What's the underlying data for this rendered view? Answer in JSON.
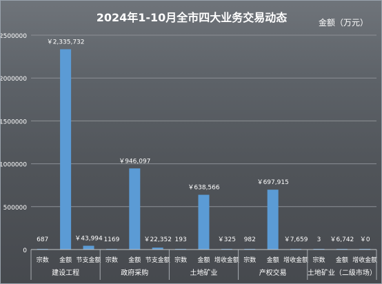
{
  "chart_data": {
    "type": "bar",
    "title": "2024年1-10月全市四大业务交易动态",
    "unit_label": "金额（万元）",
    "ylim": [
      0,
      2500000
    ],
    "y_ticks": [
      "0",
      "500000",
      "1000000",
      "1500000",
      "2000000",
      "2500000"
    ],
    "grid": true,
    "bar_color": "#5b9bd5",
    "groups": [
      {
        "name": "建设工程",
        "items": [
          {
            "label": "宗数",
            "value": 687,
            "text": "687"
          },
          {
            "label": "金额",
            "value": 2335732,
            "text": "￥2,335,732"
          },
          {
            "label": "节支金额",
            "value": 43994,
            "text": "￥43,994"
          }
        ]
      },
      {
        "name": "政府采购",
        "items": [
          {
            "label": "宗数",
            "value": 1169,
            "text": "1169"
          },
          {
            "label": "金额",
            "value": 946097,
            "text": "￥946,097"
          },
          {
            "label": "节支金额",
            "value": 22352,
            "text": "￥22,352"
          }
        ]
      },
      {
        "name": "土地矿业",
        "items": [
          {
            "label": "宗数",
            "value": 193,
            "text": "193"
          },
          {
            "label": "金额",
            "value": 638566,
            "text": "￥638,566"
          },
          {
            "label": "增收金额",
            "value": 325,
            "text": "￥325"
          }
        ]
      },
      {
        "name": "产权交易",
        "items": [
          {
            "label": "宗数",
            "value": 982,
            "text": "982"
          },
          {
            "label": "金额",
            "value": 697915,
            "text": "￥697,915"
          },
          {
            "label": "增收金额",
            "value": 7659,
            "text": "￥7,659"
          }
        ]
      },
      {
        "name": "土地矿业（二级市场）",
        "items": [
          {
            "label": "宗数",
            "value": 3,
            "text": "3"
          },
          {
            "label": "金额",
            "value": 6742,
            "text": "￥6,742"
          },
          {
            "label": "增收金额",
            "value": 0,
            "text": "￥0"
          }
        ]
      }
    ]
  }
}
